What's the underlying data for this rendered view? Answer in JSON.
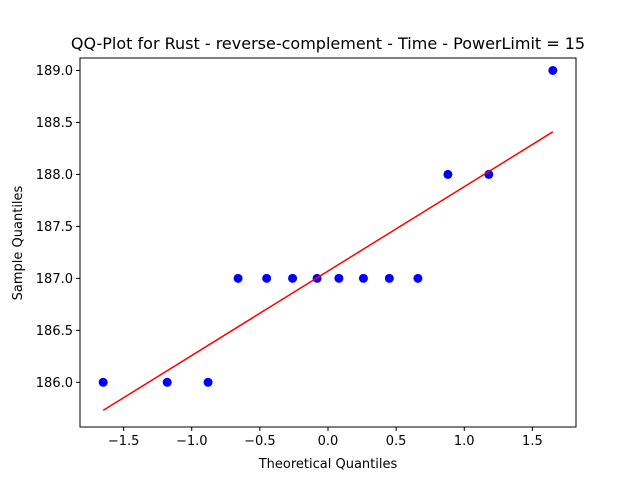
{
  "chart_data": {
    "type": "scatter",
    "title": "QQ-Plot for Rust - reverse-complement - Time - PowerLimit = 15",
    "xlabel": "Theoretical Quantiles",
    "ylabel": "Sample Quantiles",
    "xlim": [
      -1.82,
      1.82
    ],
    "ylim": [
      185.57,
      189.12
    ],
    "xticks": [
      -1.5,
      -1.0,
      -0.5,
      0.0,
      0.5,
      1.0,
      1.5
    ],
    "xtick_labels": [
      "−1.5",
      "−1.0",
      "−0.5",
      "0.0",
      "0.5",
      "1.0",
      "1.5"
    ],
    "yticks": [
      186.0,
      186.5,
      187.0,
      187.5,
      188.0,
      188.5,
      189.0
    ],
    "ytick_labels": [
      "186.0",
      "186.5",
      "187.0",
      "187.5",
      "188.0",
      "188.5",
      "189.0"
    ],
    "grid": false,
    "series": [
      {
        "kind": "points",
        "color": "#0000ff",
        "x": [
          -1.65,
          -1.18,
          -0.88,
          -0.66,
          -0.45,
          -0.26,
          -0.08,
          0.08,
          0.26,
          0.45,
          0.66,
          0.88,
          1.18,
          1.65
        ],
        "y": [
          186.0,
          186.0,
          186.0,
          187.0,
          187.0,
          187.0,
          187.0,
          187.0,
          187.0,
          187.0,
          187.0,
          188.0,
          188.0,
          189.0
        ]
      },
      {
        "kind": "line",
        "color": "#ff0000",
        "x": [
          -1.65,
          1.65
        ],
        "y": [
          185.73,
          188.41
        ]
      }
    ]
  }
}
